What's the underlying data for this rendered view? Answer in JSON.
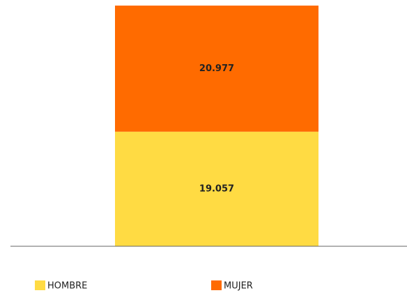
{
  "chart_data": {
    "type": "stacked-bar",
    "categories": [
      null
    ],
    "series": [
      {
        "name": "HOMBRE",
        "color": "#FFDB43",
        "values": [
          19057
        ],
        "value_labels": [
          "19.057"
        ]
      },
      {
        "name": "MUJER",
        "color": "#FF6B00",
        "values": [
          20977
        ],
        "value_labels": [
          "20.977"
        ]
      }
    ],
    "ylim": [
      0,
      40034
    ]
  }
}
